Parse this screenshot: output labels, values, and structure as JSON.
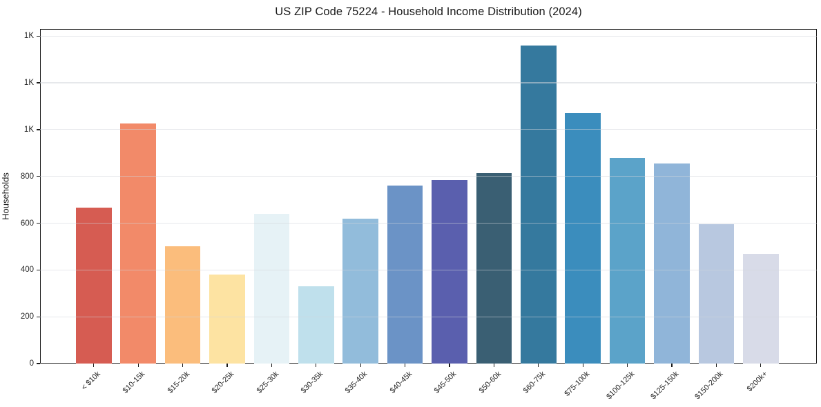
{
  "chart_data": {
    "type": "bar",
    "title": "US ZIP Code 75224 - Household Income Distribution (2024)",
    "xlabel": "",
    "ylabel": "Households",
    "categories": [
      "< $10k",
      "$10-15k",
      "$15-20k",
      "$20-25k",
      "$25-30k",
      "$30-35k",
      "$35-40k",
      "$40-45k",
      "$45-50k",
      "$50-60k",
      "$60-75k",
      "$75-100k",
      "$100-125k",
      "$125-150k",
      "$150-200k",
      "$200k+"
    ],
    "values": [
      665,
      1025,
      500,
      380,
      640,
      330,
      620,
      760,
      785,
      815,
      1360,
      1070,
      880,
      855,
      595,
      470
    ],
    "bar_colors": [
      "#d65c52",
      "#f28a69",
      "#fbbd7c",
      "#fde3a2",
      "#e6f2f6",
      "#bfe0ec",
      "#92bcdb",
      "#6b93c6",
      "#5a5fae",
      "#3a5f73",
      "#35799e",
      "#3b8dbd",
      "#5ba3c9",
      "#90b5d9",
      "#b8c8e0",
      "#d8dbe8"
    ],
    "ylim": [
      0,
      1430
    ],
    "ytick_values": [
      0,
      200,
      400,
      600,
      800,
      1000,
      1200,
      1400
    ],
    "ytick_labels": [
      "0",
      "200",
      "400",
      "600",
      "800",
      "1K",
      "1K",
      "1K"
    ],
    "grid": "horizontal-light",
    "legend": "none",
    "frame_color": "#1a1a1a",
    "background_color": "#ffffff"
  }
}
